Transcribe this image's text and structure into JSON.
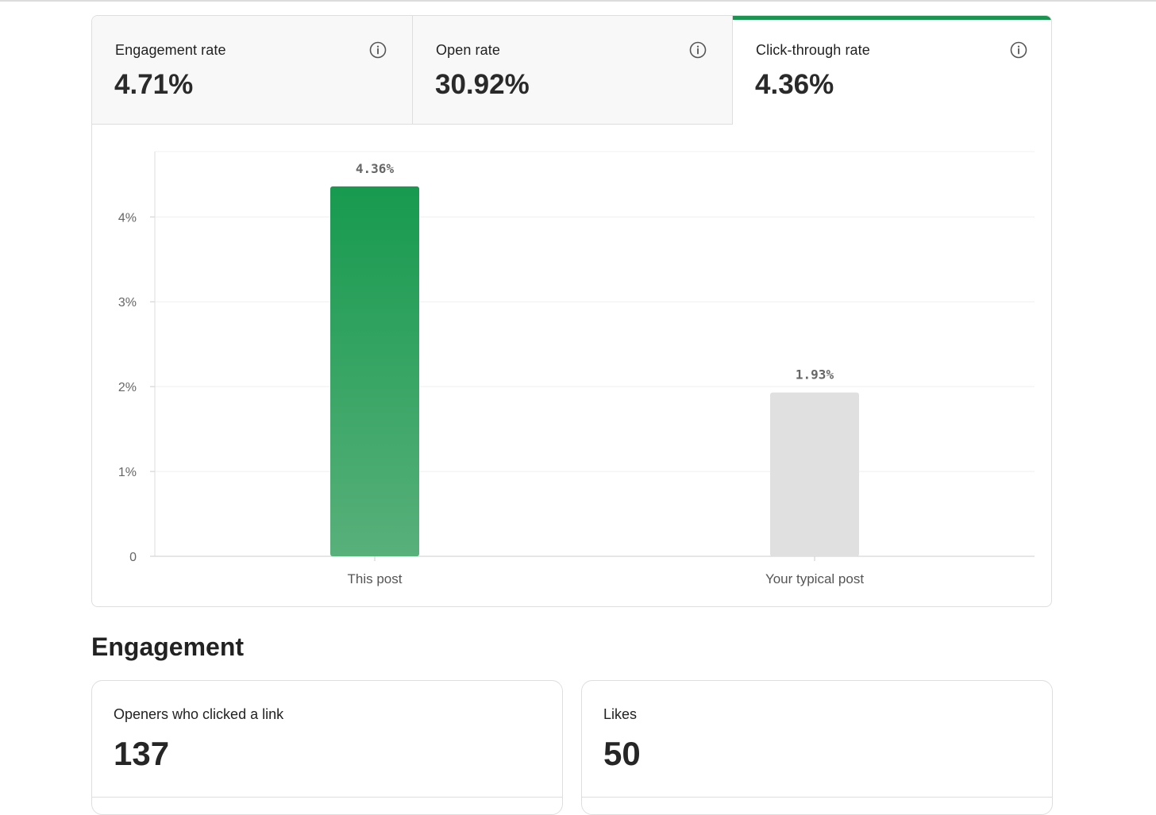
{
  "tabs": [
    {
      "label": "Engagement rate",
      "value": "4.71%"
    },
    {
      "label": "Open rate",
      "value": "30.92%"
    },
    {
      "label": "Click-through rate",
      "value": "4.36%"
    }
  ],
  "colors": {
    "accent": "#1a9450",
    "bar_this_top": "#179a4f",
    "bar_this_bottom": "#58b07a",
    "bar_typical": "#e0e0e0"
  },
  "chart_data": {
    "type": "bar",
    "categories": [
      "This post",
      "Your typical post"
    ],
    "values": [
      4.36,
      1.93
    ],
    "data_labels": [
      "4.36%",
      "1.93%"
    ],
    "ylim": [
      0,
      4.77
    ],
    "yticks": [
      0,
      1,
      2,
      3,
      4
    ],
    "ytick_labels": [
      "0",
      "1%",
      "2%",
      "3%",
      "4%"
    ],
    "grid": true,
    "xlabel": "",
    "ylabel": ""
  },
  "section": {
    "title": "Engagement"
  },
  "stats": [
    {
      "label": "Openers who clicked a link",
      "value": "137"
    },
    {
      "label": "Likes",
      "value": "50"
    }
  ]
}
